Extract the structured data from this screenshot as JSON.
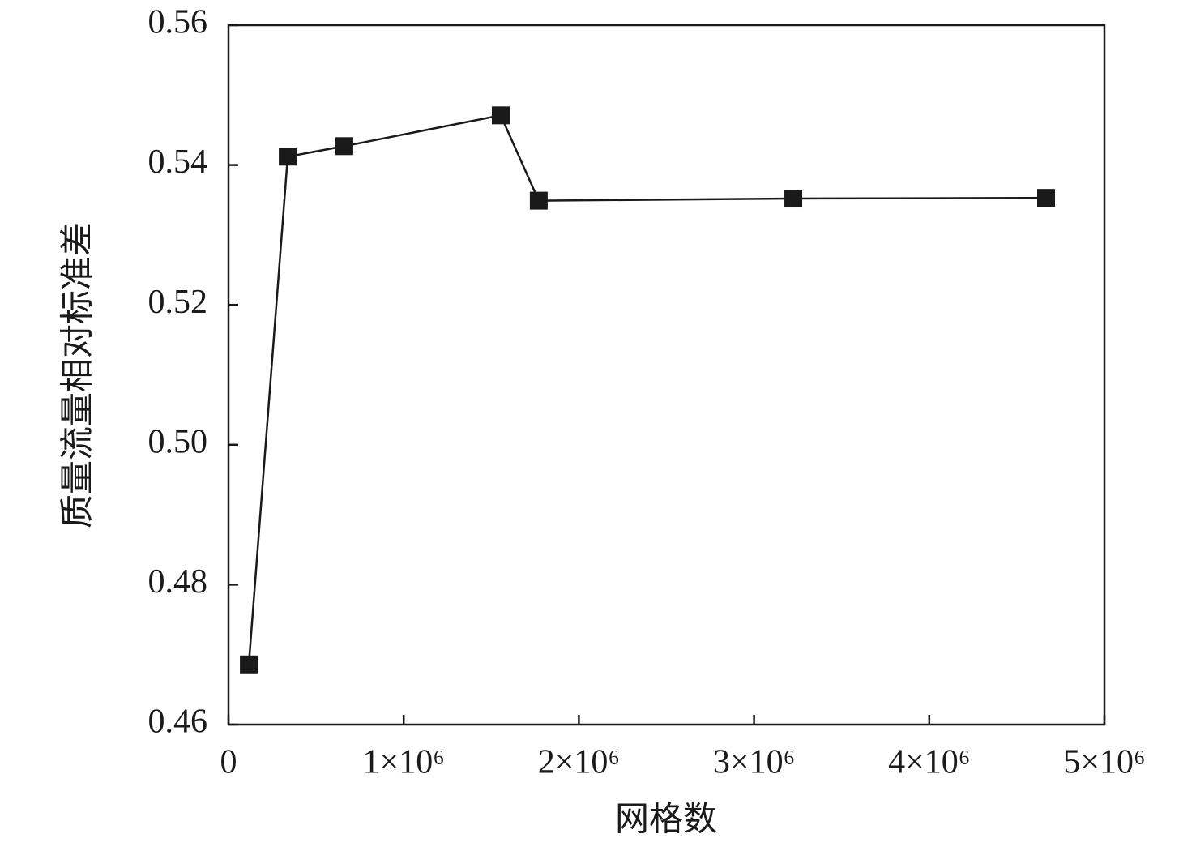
{
  "chart_data": {
    "type": "line",
    "xlabel": "网格数",
    "ylabel": "质量流量相对标准差",
    "x": [
      116000,
      338000,
      661000,
      1554000,
      1771000,
      3224000,
      4667000
    ],
    "series": [
      {
        "color": "#1a1a1a",
        "marker": "square",
        "values": [
          0.4686,
          0.5412,
          0.5427,
          0.5471,
          0.5349,
          0.5352,
          0.5353
        ]
      }
    ],
    "xlim": [
      0,
      5000000
    ],
    "xticks": [
      0,
      {
        "value": 1000000,
        "label": "1×10⁶"
      },
      {
        "value": 2000000,
        "label": "2×10⁶"
      },
      {
        "value": 3000000,
        "label": "3×10⁶"
      },
      {
        "value": 4000000,
        "label": "4×10⁶"
      },
      {
        "value": 5000000,
        "label": "5×10⁶"
      }
    ],
    "ylim": [
      0.46,
      0.56
    ],
    "yticks": [
      0.46,
      0.48,
      {
        "value": 0.5,
        "label": "0.50"
      },
      0.52,
      0.54,
      0.56
    ],
    "grid": false
  }
}
